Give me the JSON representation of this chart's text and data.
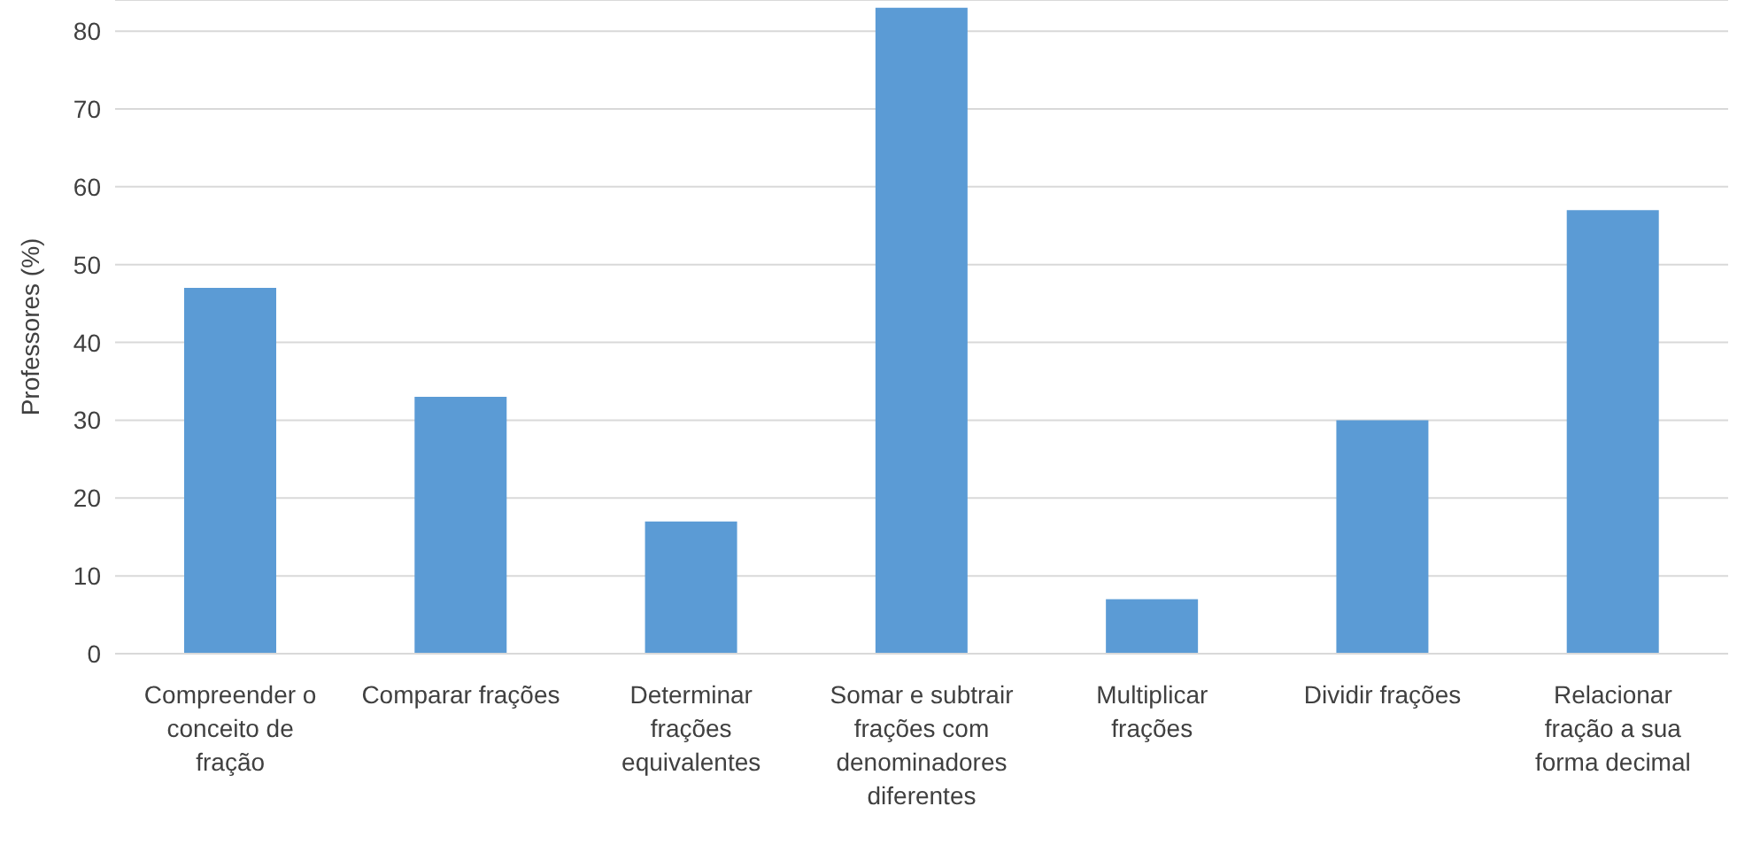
{
  "chart_data": {
    "type": "bar",
    "ylabel": "Professores (%)",
    "categories": [
      "Compreender o conceito de fração",
      "Comparar frações",
      "Determinar frações equivalentes",
      "Somar e subtrair frações com denominadores diferentes",
      "Multiplicar frações",
      "Dividir frações",
      "Relacionar fração a sua forma decimal"
    ],
    "values": [
      47,
      33,
      17,
      83,
      7,
      30,
      57
    ],
    "color": "#5b9bd5",
    "ylim": [
      0,
      84
    ],
    "yticks": [
      0,
      10,
      20,
      30,
      40,
      50,
      60,
      70,
      80
    ],
    "grid": "y",
    "legend": false
  }
}
